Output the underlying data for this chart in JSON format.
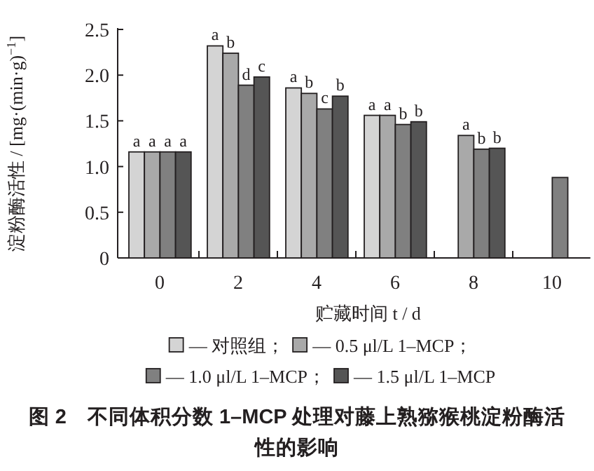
{
  "chart_data": {
    "type": "bar",
    "title": "图 2　不同体积分数 1–MCP 处理对藤上熟猕猴桃淀粉酶活性的影响",
    "xlabel": "贮藏时间 t / d",
    "ylabel": "淀粉酶活性 / [mg·(min·g)$^{−1}$]",
    "categories": [
      "0",
      "2",
      "4",
      "6",
      "8",
      "10"
    ],
    "series": [
      {
        "name": "— 对照组；",
        "color": "#d4d4d4",
        "values": [
          1.16,
          2.32,
          1.86,
          1.56,
          null,
          null
        ],
        "value_labels": [
          "a",
          "a",
          "a",
          "a",
          null,
          null
        ]
      },
      {
        "name": "— 0.5 μl/L 1–MCP；",
        "color": "#a9a9a9",
        "values": [
          1.16,
          2.24,
          1.8,
          1.56,
          1.34,
          null
        ],
        "value_labels": [
          "a",
          "b",
          "b",
          "a",
          "a",
          null
        ]
      },
      {
        "name": "— 1.0 μl/L 1–MCP；",
        "color": "#808080",
        "values": [
          1.16,
          1.89,
          1.63,
          1.46,
          1.19,
          0.88
        ],
        "value_labels": [
          "a",
          "d",
          "c",
          "b",
          "b",
          null
        ]
      },
      {
        "name": "— 1.5 μl/L 1–MCP",
        "color": "#555555",
        "values": [
          1.16,
          1.98,
          1.77,
          1.49,
          1.2,
          null
        ],
        "value_labels": [
          "a",
          "c",
          "b",
          "b",
          "b",
          null
        ]
      }
    ],
    "ylim": [
      0,
      2.5
    ],
    "yticks": [
      0,
      0.5,
      {
        "value": 1,
        "label": "1.0"
      },
      1.5,
      {
        "value": 2,
        "label": "2.0"
      },
      2.5
    ],
    "grid": false,
    "legend": "bottom"
  }
}
